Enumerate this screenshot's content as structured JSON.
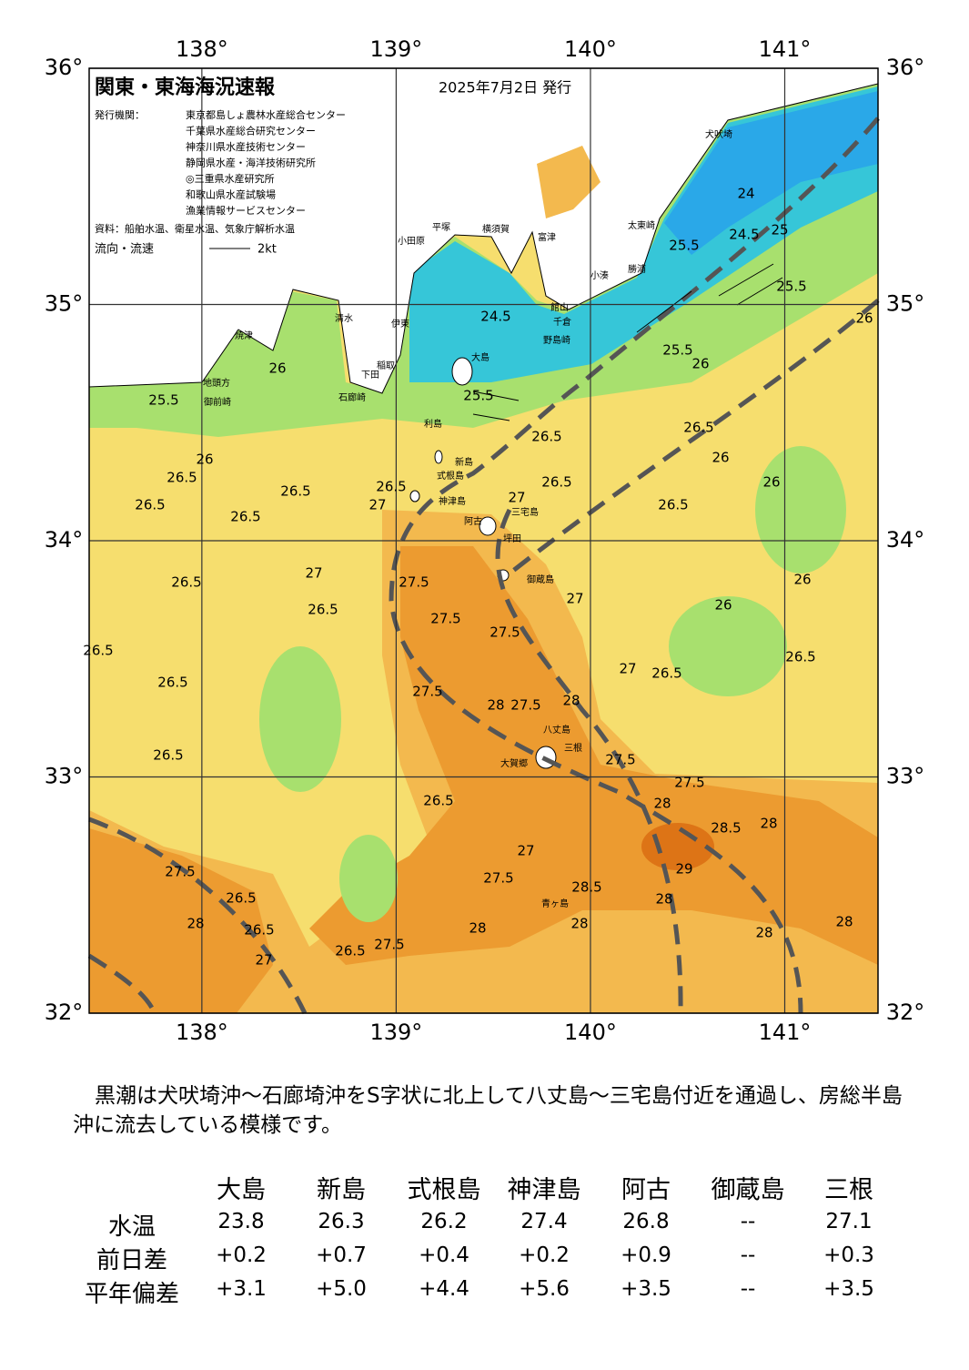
{
  "map": {
    "title": "関東・東海海況速報",
    "date": "2025年7月2日 発行",
    "issuer_label": "発行機関：",
    "issuers": [
      "東京都島しょ農林水産総合センター",
      "千葉県水産総合研究センター",
      "神奈川県水産技術センター",
      "静岡県水産・海洋技術研究所",
      "◎三重県水産研究所",
      "和歌山県水産試験場",
      "漁業情報サービスセンター"
    ],
    "source": "資料：船舶水温、衛星水温、気象庁解析水温",
    "flow_legend": "流向・流速",
    "flow_scale": "2kt",
    "lonlim": [
      137.42,
      141.48
    ],
    "latlim": [
      32,
      36
    ],
    "lon_ticks": [
      {
        "value": 138,
        "label": "138°"
      },
      {
        "value": 139,
        "label": "139°"
      },
      {
        "value": 140,
        "label": "140°"
      },
      {
        "value": 141,
        "label": "141°"
      }
    ],
    "lat_ticks": [
      {
        "value": 32,
        "label": "32°"
      },
      {
        "value": 33,
        "label": "33°"
      },
      {
        "value": 34,
        "label": "34°"
      },
      {
        "value": 35,
        "label": "35°"
      },
      {
        "value": 36,
        "label": "36°"
      }
    ],
    "place_labels": [
      "大島",
      "利島",
      "新島",
      "式根島",
      "神津島",
      "阿古",
      "三宅島",
      "坪田",
      "御蔵島",
      "八丈島",
      "三根",
      "大賀郷",
      "青ヶ島",
      "小田原",
      "平塚",
      "横須賀",
      "富津",
      "館山",
      "千倉",
      "野島崎",
      "小湊",
      "勝浦",
      "太東崎",
      "犬吠埼",
      "伊東",
      "下田",
      "石廊崎",
      "稲取",
      "地頭方",
      "御前崎",
      "焼津",
      "清水"
    ],
    "contour_labels": [
      25.5,
      26,
      26.5,
      26,
      26.5,
      26.5,
      26.5,
      27,
      26.5,
      27,
      26.5,
      26.5,
      26.5,
      26.5,
      26.5,
      27.5,
      27.5,
      27.5,
      27.5,
      28,
      27.5,
      28,
      26.5,
      27,
      26,
      26,
      26.5,
      26.5,
      26,
      26.5,
      26,
      25.5,
      26,
      25.5,
      27.5,
      27.5,
      28,
      28.5,
      28,
      29,
      28,
      28.5,
      27,
      27.5,
      26.5,
      28,
      28,
      28,
      28,
      27.5,
      28,
      26.5,
      26.5,
      27,
      27.5,
      26.5,
      24.5,
      24.5,
      24,
      25.5,
      25.5,
      26.5,
      26.5,
      27,
      27,
      25,
      26
    ]
  },
  "summary": "黒潮は犬吠埼沖～石廊埼沖をS字状に北上して八丈島～三宅島付近を通過し、房総半島沖に流去している模様です。",
  "table": {
    "columns": [
      "大島",
      "新島",
      "式根島",
      "神津島",
      "阿古",
      "御蔵島",
      "三根"
    ],
    "rows": [
      {
        "label": "水温",
        "values": [
          "23.8",
          "26.3",
          "26.2",
          "27.4",
          "26.8",
          "--",
          "27.1"
        ]
      },
      {
        "label": "前日差",
        "values": [
          "+0.2",
          "+0.7",
          "+0.4",
          "+0.2",
          "+0.9",
          "--",
          "+0.3"
        ]
      },
      {
        "label": "平年偏差",
        "values": [
          "+3.1",
          "+5.0",
          "+4.4",
          "+5.6",
          "+3.5",
          "--",
          "+3.5"
        ]
      }
    ]
  }
}
